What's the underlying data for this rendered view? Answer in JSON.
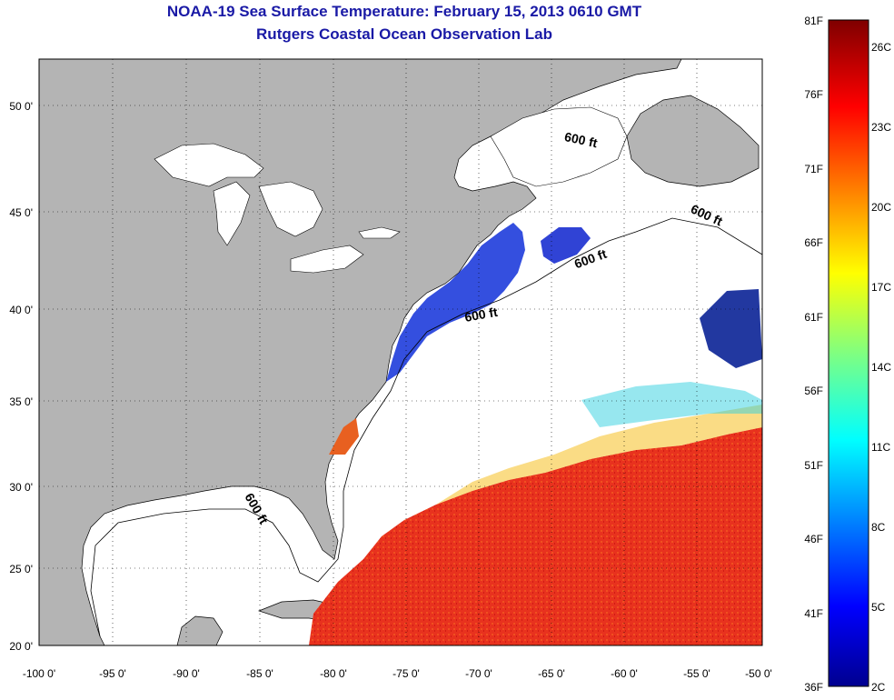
{
  "title": {
    "line1": "NOAA-19 Sea Surface Temperature:  February 15, 2013 0610 GMT",
    "line2": "Rutgers Coastal Ocean Observation Lab"
  },
  "map": {
    "lon_range": [
      -100,
      -50
    ],
    "lat_range": [
      20,
      52.5
    ],
    "lon_ticks": [
      "-100 0'",
      "-95 0'",
      "-90 0'",
      "-85 0'",
      "-80 0'",
      "-75 0'",
      "-70 0'",
      "-65 0'",
      "-60 0'",
      "-55 0'",
      "-50 0'"
    ],
    "lat_ticks": [
      "20 0'",
      "25 0'",
      "30 0'",
      "35 0'",
      "40 0'",
      "45 0'",
      "50 0'"
    ],
    "contour_labels": [
      "600 ft",
      "600 ft",
      "600 ft",
      "600 ft",
      "600 ft"
    ],
    "colors": {
      "land": "#b4b4b4",
      "water_no_data": "#ffffff",
      "warm": "#e8321e",
      "cold": "#1e3cdc"
    }
  },
  "colorbar": {
    "fahrenheit_labels": [
      "81F",
      "76F",
      "71F",
      "66F",
      "61F",
      "56F",
      "51F",
      "46F",
      "41F",
      "36F"
    ],
    "celsius_labels": [
      "26C",
      "23C",
      "20C",
      "17C",
      "14C",
      "11C",
      "8C",
      "5C",
      "2C"
    ],
    "colormap": [
      "#7f0000",
      "#ff0000",
      "#ff8000",
      "#ffff00",
      "#80ff80",
      "#00ffff",
      "#0080ff",
      "#0000ff",
      "#00008f"
    ]
  }
}
